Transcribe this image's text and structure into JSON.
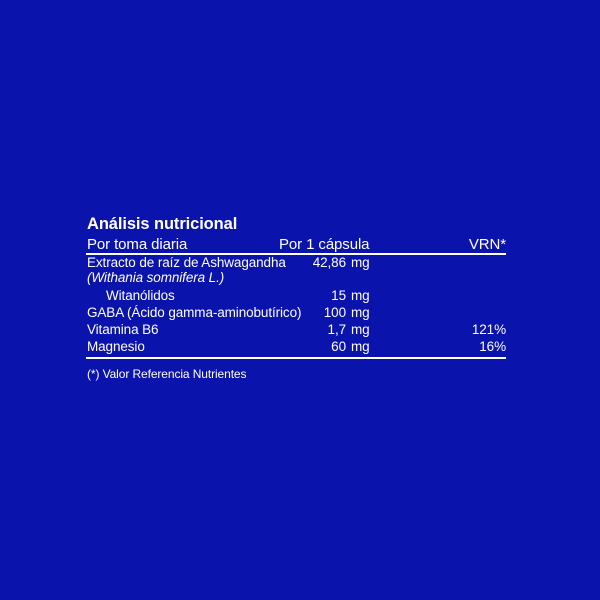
{
  "panel": {
    "background_color": "#0a13ab",
    "text_color": "#ffffff"
  },
  "table": {
    "title": "Análisis nutricional",
    "header": {
      "col1": "Por toma diaria",
      "col2": "Por 1 cápsula",
      "col3": "VRN*"
    },
    "rows": [
      {
        "name": "Extracto de raíz de Ashwagandha",
        "scientific_name": "(Withania somnifera L.)",
        "amount": "42,86",
        "unit": "mg",
        "vrn": ""
      },
      {
        "name": "Witanólidos",
        "amount": "15",
        "unit": "mg",
        "vrn": ""
      },
      {
        "name": "GABA (Ácido gamma-aminobutírico)",
        "amount": "100",
        "unit": "mg",
        "vrn": ""
      },
      {
        "name": "Vitamina B6",
        "amount": "1,7",
        "unit": "mg",
        "vrn": "121%"
      },
      {
        "name": "Magnesio",
        "amount": "60",
        "unit": "mg",
        "vrn": "16%"
      }
    ],
    "footnote": "(*) Valor Referencia Nutrientes"
  }
}
